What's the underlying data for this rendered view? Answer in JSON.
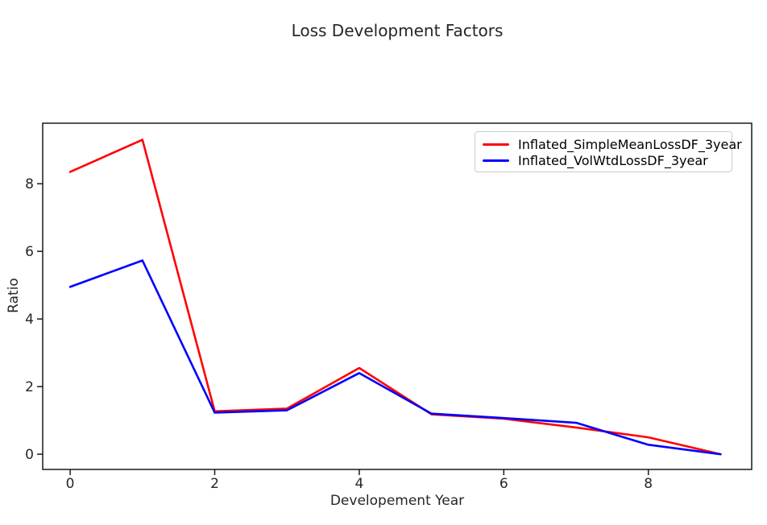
{
  "chart_data": {
    "type": "line",
    "title": "Loss Development Factors",
    "xlabel": "Developement Year",
    "ylabel": "Ratio",
    "x": [
      0,
      1,
      2,
      3,
      4,
      5,
      6,
      7,
      8,
      9
    ],
    "series": [
      {
        "name": "Inflated_SimpleMeanLossDF_3year",
        "color": "#ff0000",
        "values": [
          8.35,
          9.3,
          1.27,
          1.35,
          2.55,
          1.18,
          1.05,
          0.79,
          0.5,
          0.0
        ]
      },
      {
        "name": "Inflated_VolWtdLossDF_3year",
        "color": "#0000ff",
        "values": [
          4.95,
          5.73,
          1.23,
          1.3,
          2.4,
          1.2,
          1.07,
          0.93,
          0.28,
          0.0
        ]
      }
    ],
    "xticks": [
      0,
      2,
      4,
      6,
      8
    ],
    "yticks": [
      0,
      2,
      4,
      6,
      8
    ],
    "xlim": [
      -0.38,
      9.43
    ],
    "ylim": [
      -0.45,
      9.79
    ],
    "grid": false,
    "legend_position": "upper right",
    "axes_color": "#1a1a1a",
    "text_color": "#262626"
  }
}
